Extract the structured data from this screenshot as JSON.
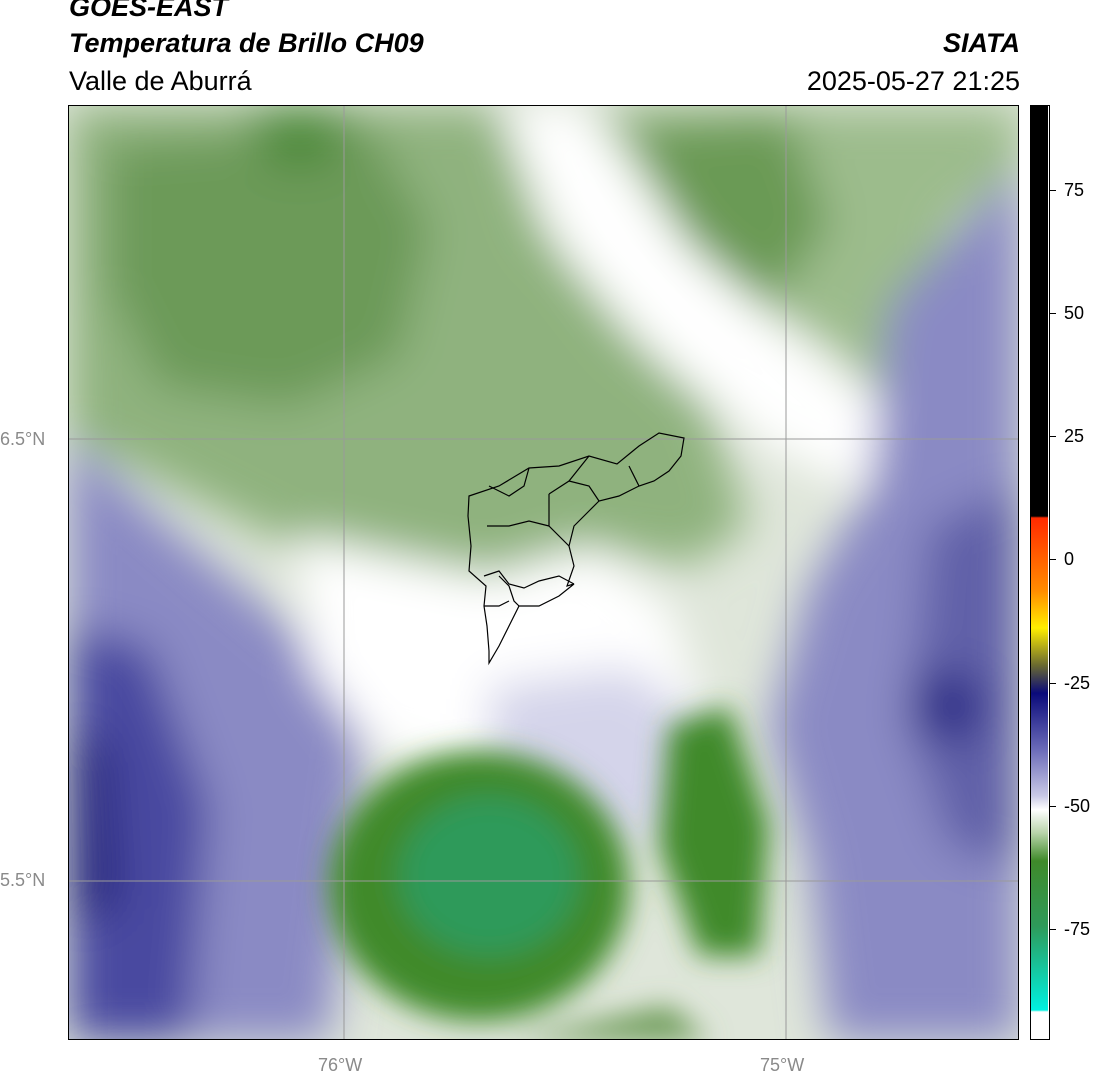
{
  "header": {
    "satellite": "GOES-EAST",
    "product": "Temperatura de Brillo CH09",
    "region": "Valle de Aburrá",
    "organization": "SIATA",
    "timestamp": "2025-05-27 21:25"
  },
  "axes": {
    "lat_ticks": [
      "6.5°N",
      "5.5°N"
    ],
    "lon_ticks": [
      "76°W",
      "75°W"
    ]
  },
  "colorbar": {
    "ticks": [
      "75",
      "50",
      "25",
      "0",
      "-25",
      "-50",
      "-75"
    ],
    "colors": {
      "black": "#000000",
      "red": "#ff2a00",
      "orange": "#ff8c00",
      "yellow": "#ffee00",
      "navy": "#0a0a7a",
      "lavender": "#b8b8dc",
      "white": "#ffffff",
      "green": "#3f8a2a",
      "teal": "#20c8a8",
      "cyan": "#00f0e0"
    }
  }
}
